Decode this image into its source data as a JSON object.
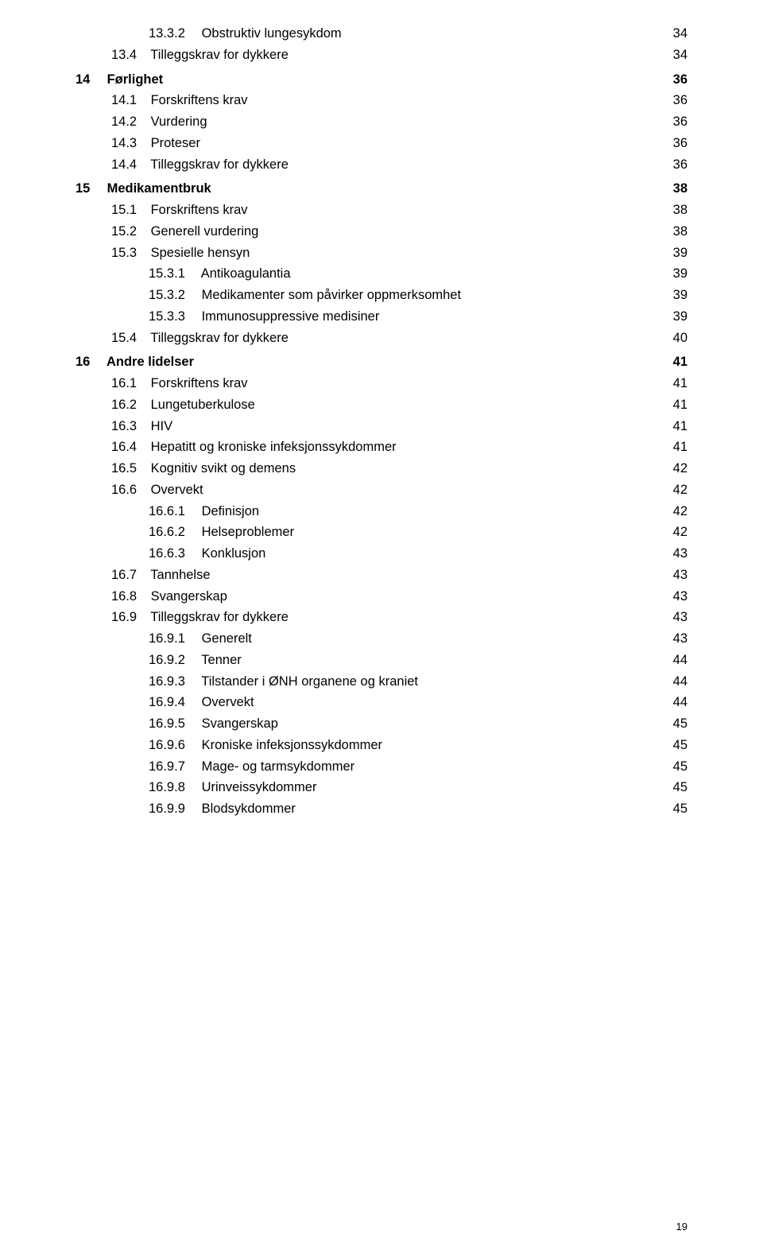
{
  "entries": [
    {
      "level": 2,
      "num": "13.3.2",
      "title": "Obstruktiv lungesykdom",
      "page": "34"
    },
    {
      "level": 1,
      "num": "13.4",
      "title": "Tilleggskrav for dykkere",
      "page": "34"
    },
    {
      "spacer": true
    },
    {
      "level": 0,
      "num": "14",
      "title": "Førlighet",
      "page": "36"
    },
    {
      "level": 1,
      "num": "14.1",
      "title": "Forskriftens krav",
      "page": "36"
    },
    {
      "level": 1,
      "num": "14.2",
      "title": "Vurdering",
      "page": "36"
    },
    {
      "level": 1,
      "num": "14.3",
      "title": "Proteser",
      "page": "36"
    },
    {
      "level": 1,
      "num": "14.4",
      "title": "Tilleggskrav for dykkere",
      "page": "36"
    },
    {
      "spacer": true
    },
    {
      "level": 0,
      "num": "15",
      "title": "Medikamentbruk",
      "page": "38"
    },
    {
      "level": 1,
      "num": "15.1",
      "title": "Forskriftens krav",
      "page": "38"
    },
    {
      "level": 1,
      "num": "15.2",
      "title": "Generell vurdering",
      "page": "38"
    },
    {
      "level": 1,
      "num": "15.3",
      "title": "Spesielle hensyn",
      "page": "39"
    },
    {
      "level": 2,
      "num": "15.3.1",
      "title": "Antikoagulantia",
      "page": "39"
    },
    {
      "level": 2,
      "num": "15.3.2",
      "title": "Medikamenter som påvirker oppmerksomhet",
      "page": "39"
    },
    {
      "level": 2,
      "num": "15.3.3",
      "title": "Immunosuppressive medisiner",
      "page": "39"
    },
    {
      "level": 1,
      "num": "15.4",
      "title": "Tilleggskrav for dykkere",
      "page": "40"
    },
    {
      "spacer": true
    },
    {
      "level": 0,
      "num": "16",
      "title": "Andre lidelser",
      "page": "41"
    },
    {
      "level": 1,
      "num": "16.1",
      "title": "Forskriftens krav",
      "page": "41"
    },
    {
      "level": 1,
      "num": "16.2",
      "title": "Lungetuberkulose",
      "page": "41"
    },
    {
      "level": 1,
      "num": "16.3",
      "title": "HIV",
      "page": "41"
    },
    {
      "level": 1,
      "num": "16.4",
      "title": "Hepatitt og kroniske infeksjonssykdommer",
      "page": "41"
    },
    {
      "level": 1,
      "num": "16.5",
      "title": "Kognitiv svikt og demens",
      "page": "42"
    },
    {
      "level": 1,
      "num": "16.6",
      "title": "Overvekt",
      "page": "42"
    },
    {
      "level": 2,
      "num": "16.6.1",
      "title": "Definisjon",
      "page": "42"
    },
    {
      "level": 2,
      "num": "16.6.2",
      "title": "Helseproblemer",
      "page": "42"
    },
    {
      "level": 2,
      "num": "16.6.3",
      "title": "Konklusjon",
      "page": "43"
    },
    {
      "level": 1,
      "num": "16.7",
      "title": "Tannhelse",
      "page": "43"
    },
    {
      "level": 1,
      "num": "16.8",
      "title": "Svangerskap",
      "page": "43"
    },
    {
      "level": 1,
      "num": "16.9",
      "title": "Tilleggskrav for dykkere",
      "page": "43"
    },
    {
      "level": 2,
      "num": "16.9.1",
      "title": "Generelt",
      "page": "43"
    },
    {
      "level": 2,
      "num": "16.9.2",
      "title": "Tenner",
      "page": "44"
    },
    {
      "level": 2,
      "num": "16.9.3",
      "title": "Tilstander i ØNH organene og kraniet",
      "page": "44"
    },
    {
      "level": 2,
      "num": "16.9.4",
      "title": "Overvekt",
      "page": "44"
    },
    {
      "level": 2,
      "num": "16.9.5",
      "title": "Svangerskap",
      "page": "45"
    },
    {
      "level": 2,
      "num": "16.9.6",
      "title": "Kroniske infeksjonssykdommer",
      "page": "45"
    },
    {
      "level": 2,
      "num": "16.9.7",
      "title": "Mage- og tarmsykdommer",
      "page": "45"
    },
    {
      "level": 2,
      "num": "16.9.8",
      "title": "Urinveissykdommer",
      "page": "45"
    },
    {
      "level": 2,
      "num": "16.9.9",
      "title": "Blodsykdommer",
      "page": "45"
    }
  ],
  "pageNumber": "19",
  "layout": {
    "numColWidth": {
      "0": 35,
      "1": 45,
      "2": 62
    }
  }
}
